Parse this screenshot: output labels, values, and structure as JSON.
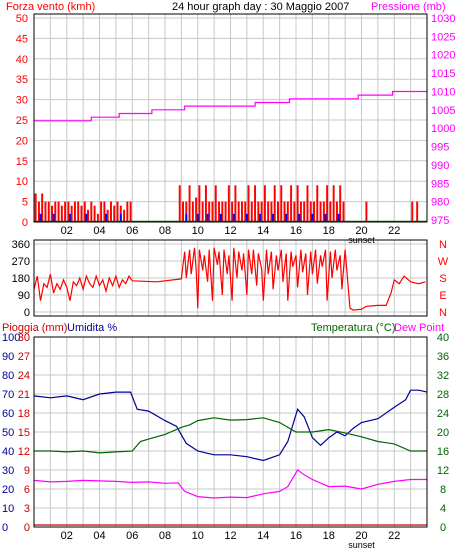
{
  "header": {
    "left_label": "Forza vento (kmh)",
    "title": "24 hour graph day : 30 Maggio 2007",
    "right_label": "Pressione (mb)"
  },
  "bottom_header": {
    "rain_label": "Pioggia (mm)",
    "humidity_label": "Umidita %",
    "temp_label": "Temperatura (°C)",
    "dew_label": "Dew Point"
  },
  "colors": {
    "wind": "#ff0000",
    "gust": "#0000ff",
    "pressure": "#ff00ff",
    "humidity": "#000099",
    "temperature": "#006600",
    "dewpoint": "#ff00ff",
    "rain": "#cc0000",
    "frame": "#000000",
    "grid": "#c8c8c8"
  },
  "chart_data": [
    {
      "type": "bar",
      "name": "wind",
      "x_ticks": [
        "02",
        "04",
        "06",
        "08",
        "10",
        "12",
        "14",
        "16",
        "18",
        "20",
        "22"
      ],
      "x_marker": "sunset",
      "left_ticks": [
        0,
        5,
        10,
        15,
        20,
        25,
        30,
        35,
        40,
        45,
        50
      ],
      "ylim_left": [
        0,
        50
      ],
      "right_ticks": [
        975,
        980,
        985,
        990,
        995,
        1000,
        1005,
        1010,
        1015,
        1020,
        1025,
        1030
      ],
      "ylim_right": [
        975,
        1030
      ],
      "xlim": [
        0,
        24
      ],
      "wind_avg": [
        [
          0.1,
          7
        ],
        [
          0.3,
          5
        ],
        [
          0.5,
          7
        ],
        [
          0.7,
          5
        ],
        [
          0.9,
          5
        ],
        [
          1.1,
          4
        ],
        [
          1.3,
          5
        ],
        [
          1.5,
          5
        ],
        [
          1.7,
          4
        ],
        [
          1.9,
          5
        ],
        [
          2.1,
          5
        ],
        [
          2.3,
          4
        ],
        [
          2.5,
          5
        ],
        [
          2.7,
          5
        ],
        [
          2.9,
          4
        ],
        [
          3.1,
          5
        ],
        [
          3.3,
          3
        ],
        [
          3.5,
          5
        ],
        [
          3.7,
          4
        ],
        [
          3.9,
          2
        ],
        [
          4.1,
          5
        ],
        [
          4.3,
          5
        ],
        [
          4.5,
          3
        ],
        [
          4.7,
          5
        ],
        [
          4.9,
          4
        ],
        [
          5.1,
          5
        ],
        [
          5.3,
          4
        ],
        [
          5.5,
          3
        ],
        [
          5.7,
          5
        ],
        [
          5.9,
          5
        ],
        [
          8.9,
          9
        ],
        [
          9.1,
          5
        ],
        [
          9.3,
          5
        ],
        [
          9.5,
          9
        ],
        [
          9.7,
          5
        ],
        [
          9.9,
          6
        ],
        [
          10.1,
          9
        ],
        [
          10.3,
          5
        ],
        [
          10.5,
          9
        ],
        [
          10.7,
          5
        ],
        [
          10.9,
          5
        ],
        [
          11.1,
          9
        ],
        [
          11.3,
          5
        ],
        [
          11.5,
          5
        ],
        [
          11.7,
          5
        ],
        [
          11.9,
          9
        ],
        [
          12.1,
          5
        ],
        [
          12.3,
          9
        ],
        [
          12.5,
          5
        ],
        [
          12.7,
          5
        ],
        [
          12.9,
          5
        ],
        [
          13.1,
          9
        ],
        [
          13.3,
          5
        ],
        [
          13.5,
          9
        ],
        [
          13.7,
          5
        ],
        [
          13.9,
          5
        ],
        [
          14.1,
          9
        ],
        [
          14.3,
          5
        ],
        [
          14.5,
          5
        ],
        [
          14.7,
          9
        ],
        [
          14.9,
          5
        ],
        [
          15.1,
          9
        ],
        [
          15.3,
          5
        ],
        [
          15.5,
          5
        ],
        [
          15.7,
          9
        ],
        [
          15.9,
          5
        ],
        [
          16.1,
          9
        ],
        [
          16.3,
          5
        ],
        [
          16.5,
          5
        ],
        [
          16.7,
          9
        ],
        [
          16.9,
          5
        ],
        [
          17.1,
          5
        ],
        [
          17.3,
          9
        ],
        [
          17.5,
          5
        ],
        [
          17.7,
          5
        ],
        [
          17.9,
          9
        ],
        [
          18.1,
          5
        ],
        [
          18.3,
          9
        ],
        [
          18.5,
          5
        ],
        [
          18.7,
          9
        ],
        [
          18.9,
          5
        ],
        [
          20.3,
          5
        ],
        [
          23.1,
          5
        ],
        [
          23.4,
          5
        ]
      ],
      "wind_gust": [
        [
          0.4,
          2
        ],
        [
          1.2,
          2
        ],
        [
          2.2,
          2
        ],
        [
          3.2,
          2
        ],
        [
          4.4,
          2
        ],
        [
          5.3,
          2
        ],
        [
          9.3,
          2
        ],
        [
          10.0,
          2
        ],
        [
          10.6,
          2
        ],
        [
          11.4,
          2
        ],
        [
          12.2,
          2
        ],
        [
          13.0,
          2
        ],
        [
          13.8,
          2
        ],
        [
          14.6,
          2
        ],
        [
          15.4,
          2
        ],
        [
          16.2,
          2
        ],
        [
          17.0,
          2
        ],
        [
          17.8,
          2
        ],
        [
          18.6,
          2
        ]
      ],
      "pressure": [
        [
          0,
          1002
        ],
        [
          1.5,
          1002
        ],
        [
          3.5,
          1003
        ],
        [
          5.2,
          1004
        ],
        [
          7.2,
          1005
        ],
        [
          9.2,
          1006
        ],
        [
          11.3,
          1006
        ],
        [
          13.5,
          1007
        ],
        [
          15.6,
          1008
        ],
        [
          17.8,
          1008
        ],
        [
          19.8,
          1009
        ],
        [
          21.9,
          1010
        ],
        [
          24,
          1010
        ]
      ]
    },
    {
      "type": "line",
      "name": "wind direction",
      "x_ticks": [],
      "left_ticks": [
        0,
        90,
        180,
        270,
        360
      ],
      "ylim": [
        0,
        360
      ],
      "compass_labels": [
        "N",
        "W",
        "S",
        "E",
        "N"
      ],
      "xlim": [
        0,
        24
      ],
      "direction": [
        [
          0,
          120
        ],
        [
          0.2,
          190
        ],
        [
          0.4,
          60
        ],
        [
          0.6,
          150
        ],
        [
          0.8,
          130
        ],
        [
          1.0,
          200
        ],
        [
          1.2,
          100
        ],
        [
          1.4,
          150
        ],
        [
          1.6,
          120
        ],
        [
          1.8,
          170
        ],
        [
          2.0,
          130
        ],
        [
          2.2,
          60
        ],
        [
          2.4,
          160
        ],
        [
          2.6,
          140
        ],
        [
          2.8,
          180
        ],
        [
          3.0,
          120
        ],
        [
          3.2,
          190
        ],
        [
          3.4,
          150
        ],
        [
          3.6,
          130
        ],
        [
          3.8,
          190
        ],
        [
          4.0,
          140
        ],
        [
          4.2,
          170
        ],
        [
          4.4,
          110
        ],
        [
          4.6,
          180
        ],
        [
          4.8,
          140
        ],
        [
          5.0,
          190
        ],
        [
          5.2,
          130
        ],
        [
          5.4,
          170
        ],
        [
          5.6,
          150
        ],
        [
          5.8,
          190
        ],
        [
          6.0,
          165
        ],
        [
          7.5,
          160
        ],
        [
          9.0,
          175
        ],
        [
          9.1,
          250
        ],
        [
          9.2,
          320
        ],
        [
          9.3,
          180
        ],
        [
          9.5,
          330
        ],
        [
          9.6,
          200
        ],
        [
          9.8,
          340
        ],
        [
          9.9,
          230
        ],
        [
          10.0,
          20
        ],
        [
          10.1,
          330
        ],
        [
          10.3,
          220
        ],
        [
          10.4,
          300
        ],
        [
          10.6,
          160
        ],
        [
          10.7,
          330
        ],
        [
          10.9,
          60
        ],
        [
          11.0,
          340
        ],
        [
          11.2,
          250
        ],
        [
          11.3,
          320
        ],
        [
          11.5,
          90
        ],
        [
          11.6,
          330
        ],
        [
          11.8,
          200
        ],
        [
          11.9,
          300
        ],
        [
          12.1,
          60
        ],
        [
          12.2,
          340
        ],
        [
          12.4,
          180
        ],
        [
          12.5,
          320
        ],
        [
          12.7,
          220
        ],
        [
          12.8,
          310
        ],
        [
          13.0,
          90
        ],
        [
          13.1,
          330
        ],
        [
          13.3,
          200
        ],
        [
          13.4,
          330
        ],
        [
          13.6,
          140
        ],
        [
          13.7,
          310
        ],
        [
          13.9,
          230
        ],
        [
          14.0,
          60
        ],
        [
          14.2,
          330
        ],
        [
          14.3,
          200
        ],
        [
          14.5,
          320
        ],
        [
          14.6,
          120
        ],
        [
          14.8,
          300
        ],
        [
          14.9,
          220
        ],
        [
          15.1,
          330
        ],
        [
          15.2,
          160
        ],
        [
          15.4,
          310
        ],
        [
          15.5,
          60
        ],
        [
          15.7,
          320
        ],
        [
          15.8,
          240
        ],
        [
          16.0,
          300
        ],
        [
          16.1,
          130
        ],
        [
          16.3,
          330
        ],
        [
          16.4,
          210
        ],
        [
          16.6,
          310
        ],
        [
          16.7,
          90
        ],
        [
          16.9,
          320
        ],
        [
          17.0,
          200
        ],
        [
          17.2,
          330
        ],
        [
          17.3,
          150
        ],
        [
          17.5,
          300
        ],
        [
          17.6,
          240
        ],
        [
          17.8,
          330
        ],
        [
          17.9,
          60
        ],
        [
          18.1,
          320
        ],
        [
          18.2,
          180
        ],
        [
          18.4,
          330
        ],
        [
          18.5,
          220
        ],
        [
          18.7,
          300
        ],
        [
          18.8,
          120
        ],
        [
          19.0,
          330
        ],
        [
          19.1,
          220
        ],
        [
          19.3,
          20
        ],
        [
          19.5,
          10
        ],
        [
          20.0,
          15
        ],
        [
          20.3,
          30
        ],
        [
          21.0,
          35
        ],
        [
          21.5,
          35
        ],
        [
          21.8,
          100
        ],
        [
          22.0,
          170
        ],
        [
          22.3,
          150
        ],
        [
          22.6,
          190
        ],
        [
          23.0,
          160
        ],
        [
          23.5,
          150
        ],
        [
          23.9,
          160
        ]
      ]
    },
    {
      "type": "line",
      "name": "humidity temperature",
      "x_ticks": [
        "02",
        "04",
        "06",
        "08",
        "10",
        "12",
        "14",
        "16",
        "18",
        "20",
        "22"
      ],
      "x_marker": "sunset",
      "left_outer_ticks": [
        0,
        10,
        20,
        30,
        40,
        50,
        60,
        70,
        80,
        90,
        100
      ],
      "left_inner_ticks": [
        0,
        3,
        6,
        9,
        12,
        15,
        18,
        21,
        24,
        27,
        30
      ],
      "right_ticks": [
        0,
        4,
        8,
        12,
        16,
        20,
        24,
        28,
        32,
        36,
        40
      ],
      "ylim_humidity": [
        0,
        100
      ],
      "ylim_temperature": [
        0,
        40
      ],
      "xlim": [
        0,
        24
      ],
      "humidity": [
        [
          0,
          69
        ],
        [
          1,
          68
        ],
        [
          2,
          69
        ],
        [
          3,
          67
        ],
        [
          4,
          70
        ],
        [
          5,
          71
        ],
        [
          5.9,
          71
        ],
        [
          6.3,
          62
        ],
        [
          7,
          61
        ],
        [
          8,
          56
        ],
        [
          8.7,
          53
        ],
        [
          9.3,
          44
        ],
        [
          10,
          40
        ],
        [
          10.5,
          39
        ],
        [
          11,
          38
        ],
        [
          12,
          38
        ],
        [
          13,
          37
        ],
        [
          14,
          35
        ],
        [
          15,
          38
        ],
        [
          15.5,
          45
        ],
        [
          16.1,
          62
        ],
        [
          16.5,
          58
        ],
        [
          17,
          47
        ],
        [
          17.5,
          43
        ],
        [
          18,
          47
        ],
        [
          18.5,
          50
        ],
        [
          19,
          48
        ],
        [
          19.5,
          52
        ],
        [
          20,
          55
        ],
        [
          21,
          57
        ],
        [
          22,
          63
        ],
        [
          22.7,
          67
        ],
        [
          23,
          72
        ],
        [
          23.5,
          72
        ],
        [
          24,
          71
        ]
      ],
      "temperature": [
        [
          0,
          16
        ],
        [
          1,
          16
        ],
        [
          2,
          15.8
        ],
        [
          3,
          16
        ],
        [
          4,
          15.6
        ],
        [
          5,
          15.8
        ],
        [
          6,
          16
        ],
        [
          6.5,
          18
        ],
        [
          7,
          18.5
        ],
        [
          8,
          19.5
        ],
        [
          9,
          21
        ],
        [
          9.5,
          21.5
        ],
        [
          10,
          22.4
        ],
        [
          11,
          23
        ],
        [
          12,
          22.5
        ],
        [
          13,
          22.6
        ],
        [
          14,
          23
        ],
        [
          15,
          22
        ],
        [
          16,
          20
        ],
        [
          17,
          20
        ],
        [
          18,
          20.5
        ],
        [
          19,
          19.8
        ],
        [
          20,
          19
        ],
        [
          21,
          18
        ],
        [
          22,
          17.5
        ],
        [
          23,
          16
        ],
        [
          24,
          16
        ]
      ],
      "dewpoint": [
        [
          0,
          9.8
        ],
        [
          1,
          9.5
        ],
        [
          2,
          9.6
        ],
        [
          3,
          9.8
        ],
        [
          4,
          9.7
        ],
        [
          5,
          9.6
        ],
        [
          6,
          9.4
        ],
        [
          7,
          9.5
        ],
        [
          8,
          9.2
        ],
        [
          8.8,
          9.3
        ],
        [
          9.2,
          7.5
        ],
        [
          10,
          6.4
        ],
        [
          11,
          6.1
        ],
        [
          12,
          6.3
        ],
        [
          13,
          6.2
        ],
        [
          14,
          7
        ],
        [
          15,
          7.5
        ],
        [
          15.5,
          8.5
        ],
        [
          16.1,
          12
        ],
        [
          16.5,
          11
        ],
        [
          17,
          10
        ],
        [
          18,
          8.5
        ],
        [
          19,
          8.6
        ],
        [
          20,
          8
        ],
        [
          21,
          9
        ],
        [
          22,
          9.6
        ],
        [
          23,
          10
        ],
        [
          24,
          10
        ]
      ],
      "rain": [
        [
          0,
          0
        ],
        [
          24,
          0
        ]
      ]
    }
  ]
}
